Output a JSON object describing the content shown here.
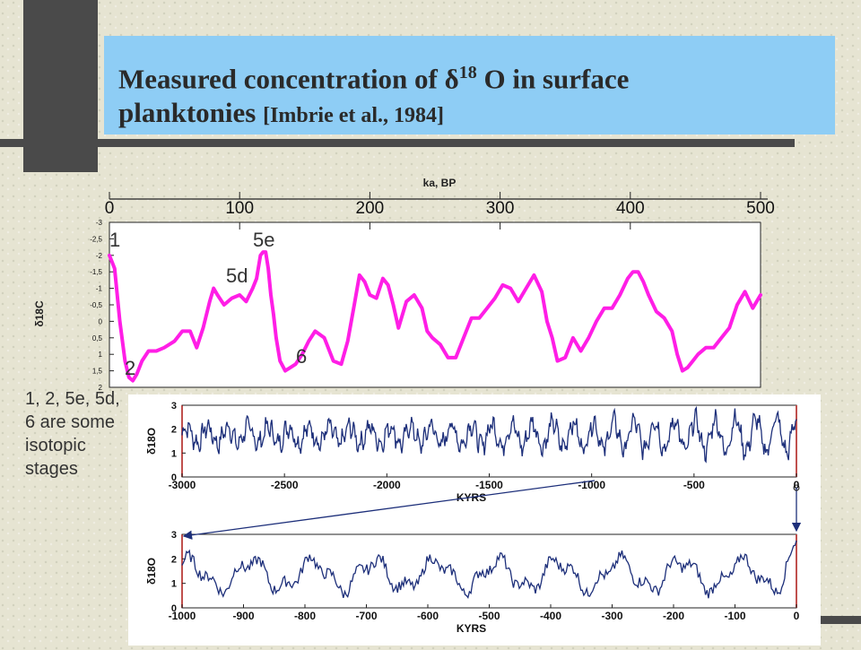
{
  "title": {
    "main_prefix": "Measured concentration  of ",
    "delta": "δ",
    "superscript": "18",
    "main_suffix": " O in surface",
    "line2": "planktonies ",
    "reference": "[Imbrie  et al., 1984]"
  },
  "side_note": "1, 2, 5e, 5d, 6 are some isotopic stages",
  "stage_labels": {
    "s1": "1",
    "s2": "2",
    "s5e": "5e",
    "s5d": "5d",
    "s6": "6"
  },
  "colors": {
    "title_bg": "#8ecdf5",
    "upper_curve": "#ff1ee6",
    "lower_curve": "#1d2f7a",
    "arrow": "#1d2f7a"
  },
  "chart_data": [
    {
      "type": "line",
      "xlabel": "ka, BP",
      "ylabel": "δ18C",
      "x_ticks": [
        "0",
        "100",
        "200",
        "300",
        "400",
        "500"
      ],
      "y_ticks": [
        "-3",
        "-2,5",
        "-2",
        "-1,5",
        "-1",
        "-0,5",
        "0",
        "0,5",
        "1",
        "1,5",
        "2"
      ],
      "xlim": [
        0,
        500
      ],
      "ylim": [
        -3,
        2
      ],
      "y_inverted": true,
      "series": [
        {
          "x": [
            0,
            4,
            8,
            12,
            15,
            18,
            21,
            25,
            30,
            36,
            42,
            50,
            56,
            62,
            67,
            72,
            77,
            80,
            83,
            88,
            94,
            100,
            105,
            110,
            113,
            116,
            118,
            120,
            122,
            124,
            126,
            128,
            131,
            135,
            139,
            143,
            148,
            153,
            158,
            165,
            172,
            178,
            183,
            188,
            192,
            196,
            200,
            205,
            210,
            214,
            218,
            222,
            228,
            234,
            240,
            244,
            248,
            254,
            260,
            266,
            272,
            278,
            284,
            290,
            296,
            302,
            308,
            314,
            320,
            326,
            332,
            336,
            340,
            344,
            350,
            356,
            362,
            368,
            374,
            380,
            386,
            392,
            398,
            402,
            406,
            410,
            414,
            420,
            426,
            432,
            436,
            440,
            444,
            448,
            452,
            458,
            464,
            470,
            476,
            482,
            488,
            494,
            500
          ],
          "values": [
            -2.0,
            -1.6,
            0.0,
            1.2,
            1.7,
            1.8,
            1.6,
            1.2,
            0.9,
            0.9,
            0.8,
            0.6,
            0.3,
            0.3,
            0.8,
            0.2,
            -0.6,
            -1.0,
            -0.8,
            -0.5,
            -0.7,
            -0.8,
            -0.6,
            -1.0,
            -1.3,
            -2.0,
            -2.1,
            -2.1,
            -1.6,
            -0.8,
            -0.2,
            0.5,
            1.2,
            1.5,
            1.4,
            1.3,
            1.0,
            0.6,
            0.3,
            0.5,
            1.2,
            1.3,
            0.6,
            -0.5,
            -1.4,
            -1.2,
            -0.8,
            -0.7,
            -1.3,
            -1.1,
            -0.5,
            0.2,
            -0.6,
            -0.8,
            -0.4,
            0.3,
            0.5,
            0.7,
            1.1,
            1.1,
            0.5,
            -0.1,
            -0.1,
            -0.4,
            -0.7,
            -1.1,
            -1.0,
            -0.6,
            -1.0,
            -1.4,
            -0.9,
            0.0,
            0.5,
            1.2,
            1.1,
            0.5,
            0.9,
            0.5,
            0.0,
            -0.4,
            -0.4,
            -0.8,
            -1.3,
            -1.5,
            -1.5,
            -1.2,
            -0.8,
            -0.3,
            -0.1,
            0.3,
            1.0,
            1.5,
            1.4,
            1.2,
            1.0,
            0.8,
            0.8,
            0.5,
            0.2,
            -0.5,
            -0.9,
            -0.4,
            -0.8
          ]
        }
      ]
    },
    {
      "type": "line",
      "xlabel": "KYRS",
      "ylabel": "δ18O",
      "x_ticks": [
        "-3000",
        "-2500",
        "-2000",
        "-1500",
        "-1000",
        "-500",
        "0"
      ],
      "y_ticks": [
        "0",
        "1",
        "2",
        "3"
      ],
      "xlim": [
        -3000,
        0
      ],
      "ylim": [
        0,
        3
      ]
    },
    {
      "type": "line",
      "xlabel": "KYRS",
      "ylabel": "δ18O",
      "x_ticks": [
        "-1000",
        "-900",
        "-800",
        "-700",
        "-600",
        "-500",
        "-400",
        "-300",
        "-200",
        "-100",
        "0"
      ],
      "y_ticks": [
        "0",
        "1",
        "2",
        "3"
      ],
      "xlim": [
        -1000,
        0
      ],
      "ylim": [
        0,
        3
      ]
    }
  ]
}
